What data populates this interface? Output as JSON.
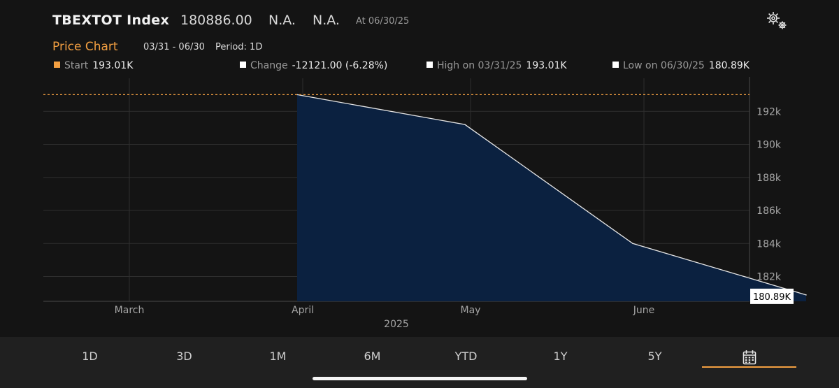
{
  "header": {
    "ticker": "TBEXTOT  Index",
    "last_price": "180886.00",
    "field1": "N.A.",
    "field2": "N.A.",
    "as_of": "At 06/30/25"
  },
  "subheader": {
    "title": "Price Chart",
    "range": "03/31 - 06/30",
    "period": "Period: 1D"
  },
  "stats": {
    "start": {
      "label": "Start",
      "value": "193.01K",
      "color": "#f39f41"
    },
    "change": {
      "label": "Change",
      "value": "-12121.00 (-6.28%)",
      "color": "#ffffff"
    },
    "high": {
      "label": "High on 03/31/25",
      "value": "193.01K",
      "color": "#ffffff"
    },
    "low": {
      "label": "Low on 06/30/25",
      "value": "180.89K",
      "color": "#ffffff"
    }
  },
  "chart_data": {
    "type": "area",
    "points": [
      {
        "date": "2025-03-31",
        "value": 193010
      },
      {
        "date": "2025-04-30",
        "value": 191200
      },
      {
        "date": "2025-05-30",
        "value": 184000
      },
      {
        "date": "2025-06-30",
        "value": 180886
      }
    ],
    "ylim": [
      180500,
      194000
    ],
    "y_ticks": [
      {
        "value": 182000,
        "label": "182k"
      },
      {
        "value": 184000,
        "label": "184k"
      },
      {
        "value": 186000,
        "label": "186k"
      },
      {
        "value": 188000,
        "label": "188k"
      },
      {
        "value": 190000,
        "label": "190k"
      },
      {
        "value": 192000,
        "label": "192k"
      }
    ],
    "x_ticks": [
      {
        "date": "2025-03-01",
        "label": "March"
      },
      {
        "date": "2025-04-01",
        "label": "April"
      },
      {
        "date": "2025-05-01",
        "label": "May"
      },
      {
        "date": "2025-06-01",
        "label": "June"
      }
    ],
    "year_label": "2025",
    "start_reference_value": 193010,
    "last_value_label": "180.89K",
    "fill_color": "#0b2140",
    "line_color": "#e6e6e6",
    "reference_color": "#f39f41",
    "grid": true
  },
  "tabs": [
    {
      "label": "1D"
    },
    {
      "label": "3D"
    },
    {
      "label": "1M"
    },
    {
      "label": "6M"
    },
    {
      "label": "YTD"
    },
    {
      "label": "1Y"
    },
    {
      "label": "5Y"
    },
    {
      "label": "",
      "icon": "calendar-icon",
      "active": true
    }
  ],
  "settings_icon": "gear-icon"
}
